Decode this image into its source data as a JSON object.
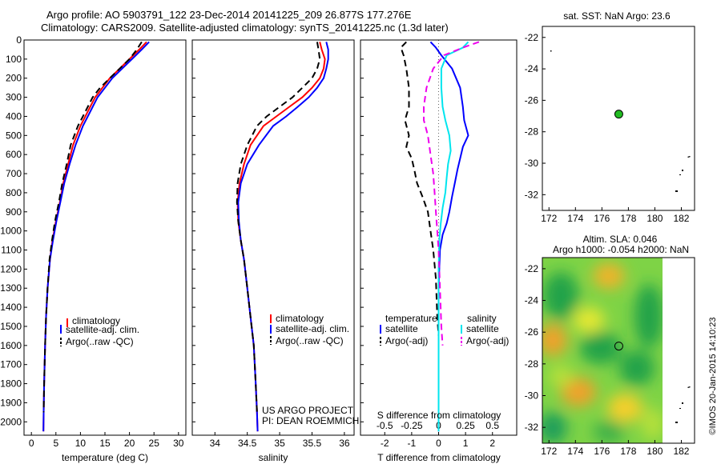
{
  "header": {
    "title_line1": "Argo profile: AO 5903791_122 23-Dec-2014 20141225_209 26.877S 177.276E",
    "title_line2": "Climatology: CARS2009. Satellite-adjusted climatology: synTS_20141225.nc (1.3d later)"
  },
  "colors": {
    "climatology": "#ff0000",
    "satellite": "#0000ff",
    "argo": "#000000",
    "sat_diff": "#00e5ee",
    "argo_adj": "#ee00ee",
    "marker": "#22bb22"
  },
  "chart_data": [
    {
      "id": "temperature",
      "type": "line",
      "xlabel": "temperature (deg C)",
      "ylabel": "",
      "xlim": [
        -1.5,
        31.5
      ],
      "ylim": [
        2070,
        0
      ],
      "xticks": [
        "0",
        "5",
        "10",
        "15",
        "20",
        "25",
        "30"
      ],
      "xtick_values": [
        0,
        5,
        10,
        15,
        20,
        25,
        30
      ],
      "yticks": [
        "0",
        "100",
        "200",
        "300",
        "400",
        "500",
        "600",
        "700",
        "800",
        "900",
        "1000",
        "1100",
        "1200",
        "1300",
        "1400",
        "1500",
        "1600",
        "1700",
        "1800",
        "1900",
        "2000"
      ],
      "ytick_values": [
        0,
        100,
        200,
        300,
        400,
        500,
        600,
        700,
        800,
        900,
        1000,
        1100,
        1200,
        1300,
        1400,
        1500,
        1600,
        1700,
        1800,
        1900,
        2000
      ],
      "legend": [
        "climatology",
        "satellite-adj. clim.",
        "Argo(..raw -QC)"
      ],
      "series": [
        {
          "name": "climatology",
          "color": "#ff0000",
          "dash": "",
          "x": [
            23.5,
            22,
            20,
            18,
            16,
            14.5,
            13,
            12,
            11,
            10,
            8.5,
            7.5,
            6.5,
            5.8,
            5,
            4.3,
            3.8,
            3.3,
            3,
            2.8,
            2.6,
            2.5,
            2.45
          ],
          "y": [
            10,
            50,
            100,
            150,
            200,
            250,
            300,
            350,
            400,
            450,
            550,
            650,
            750,
            850,
            950,
            1050,
            1150,
            1300,
            1450,
            1600,
            1800,
            1950,
            2050
          ]
        },
        {
          "name": "satellite-adj. clim.",
          "color": "#0000ff",
          "dash": "",
          "x": [
            24,
            22.5,
            20.5,
            18.5,
            16.5,
            15,
            13.5,
            12.5,
            11.5,
            10.5,
            9,
            7.8,
            6.7,
            5.9,
            5.1,
            4.4,
            3.8,
            3.3,
            3,
            2.8,
            2.6,
            2.5,
            2.45
          ],
          "y": [
            10,
            50,
            100,
            150,
            200,
            250,
            300,
            350,
            400,
            450,
            550,
            650,
            750,
            850,
            950,
            1050,
            1150,
            1300,
            1450,
            1600,
            1800,
            1950,
            2050
          ]
        },
        {
          "name": "Argo(..raw -QC)",
          "color": "#000000",
          "dash": "8,5",
          "x": [
            22.5,
            21.5,
            20,
            18,
            16,
            14,
            12.5,
            11.5,
            10.5,
            9.5,
            8,
            7.2,
            6.3,
            5.6,
            4.8,
            4.2,
            3.7,
            3.3,
            3,
            2.8,
            2.6,
            2.5
          ],
          "y": [
            10,
            50,
            100,
            150,
            200,
            250,
            300,
            350,
            400,
            450,
            550,
            650,
            750,
            850,
            950,
            1050,
            1150,
            1300,
            1450,
            1600,
            1800,
            1950
          ]
        }
      ]
    },
    {
      "id": "salinity",
      "type": "line",
      "xlabel": "salinity",
      "ylabel": "",
      "xlim": [
        33.65,
        36.15
      ],
      "ylim": [
        2070,
        0
      ],
      "xticks": [
        "34",
        "34.5",
        "35",
        "35.5",
        "36"
      ],
      "xtick_values": [
        34,
        34.5,
        35,
        35.5,
        36
      ],
      "legend": [
        "climatology",
        "satellite-adj. clim.",
        "Argo(..raw -QC)"
      ],
      "credit_line1": "US ARGO PROJECT",
      "credit_line2": "PI: DEAN ROEMMICH",
      "series": [
        {
          "name": "climatology",
          "color": "#ff0000",
          "dash": "",
          "x": [
            35.62,
            35.65,
            35.7,
            35.68,
            35.62,
            35.5,
            35.35,
            35.15,
            34.95,
            34.75,
            34.55,
            34.45,
            34.38,
            34.35,
            34.36,
            34.4,
            34.45,
            34.5,
            34.55,
            34.6,
            34.63,
            34.65,
            34.66
          ],
          "y": [
            10,
            50,
            100,
            150,
            200,
            250,
            300,
            350,
            400,
            450,
            550,
            650,
            750,
            850,
            950,
            1050,
            1150,
            1300,
            1450,
            1600,
            1800,
            1950,
            2050
          ]
        },
        {
          "name": "satellite-adj. clim.",
          "color": "#0000ff",
          "dash": "",
          "x": [
            35.72,
            35.75,
            35.75,
            35.72,
            35.68,
            35.58,
            35.45,
            35.28,
            35.1,
            34.9,
            34.68,
            34.5,
            34.4,
            34.36,
            34.37,
            34.4,
            34.45,
            34.5,
            34.55,
            34.6,
            34.63,
            34.65,
            34.66
          ],
          "y": [
            10,
            50,
            100,
            150,
            200,
            250,
            300,
            350,
            400,
            450,
            550,
            650,
            750,
            850,
            950,
            1050,
            1150,
            1300,
            1450,
            1600,
            1800,
            1950,
            2050
          ]
        },
        {
          "name": "Argo(..raw -QC)",
          "color": "#000000",
          "dash": "8,5",
          "x": [
            35.58,
            35.6,
            35.62,
            35.58,
            35.5,
            35.35,
            35.2,
            35,
            34.8,
            34.65,
            34.5,
            34.4,
            34.35,
            34.34,
            34.36,
            34.4,
            34.45,
            34.5,
            34.55,
            34.6,
            34.63,
            34.65
          ],
          "y": [
            10,
            50,
            100,
            150,
            200,
            250,
            300,
            350,
            400,
            450,
            550,
            650,
            750,
            850,
            950,
            1050,
            1150,
            1300,
            1450,
            1600,
            1800,
            1950
          ]
        }
      ]
    },
    {
      "id": "difference",
      "type": "line",
      "xlabel": "T difference from climatology",
      "xlabel_top": "S difference from climatology",
      "xlim": [
        -2.9,
        2.9
      ],
      "ylim": [
        2070,
        0
      ],
      "xticks": [
        "-2",
        "-1",
        "0",
        "1",
        "2"
      ],
      "xtick_values": [
        -2,
        -1,
        0,
        1,
        2
      ],
      "xticks_top": [
        "-0.5",
        "-0.25",
        "0",
        "0.25",
        "0.5"
      ],
      "legend_temperature_title": "temperature",
      "legend_salinity_title": "salinity",
      "legend": [
        "satellite",
        "Argo(-adj)",
        "satellite",
        "Argo(-adj)"
      ],
      "series": [
        {
          "name": "satellite",
          "color": "#0000ff",
          "dash": "",
          "x": [
            -0.3,
            -0.1,
            0.1,
            0.5,
            0.8,
            0.9,
            0.95,
            1.1,
            0.9,
            0.8,
            0.7,
            0.6,
            0.5,
            0.4,
            0.3,
            0.15,
            0.05,
            0,
            0,
            0,
            0
          ],
          "y": [
            10,
            40,
            80,
            150,
            250,
            350,
            420,
            500,
            560,
            620,
            680,
            750,
            820,
            900,
            960,
            1020,
            1100,
            1300,
            1500,
            1800,
            2050
          ]
        },
        {
          "name": "Argo(-adj)",
          "color": "#000000",
          "dash": "8,5",
          "x": [
            -1.2,
            -1.4,
            -1.3,
            -1.2,
            -1.1,
            -1.1,
            -1.25,
            -1.1,
            -1.2,
            -1,
            -0.9,
            -0.8,
            -0.6,
            -0.4,
            -0.3,
            -0.2,
            -0.1,
            -0.05,
            0
          ],
          "y": [
            10,
            40,
            80,
            150,
            250,
            350,
            420,
            500,
            560,
            620,
            680,
            750,
            820,
            900,
            1000,
            1100,
            1250,
            1450,
            1550
          ]
        },
        {
          "name": "satellite",
          "color": "#00e5ee",
          "dash": "",
          "x": [
            1.1,
            0.9,
            0.3,
            0.1,
            0.1,
            0.15,
            0.25,
            0.4,
            0.45,
            0.35,
            0.3,
            0.25,
            0.15,
            0.08,
            0.03,
            0,
            0,
            0
          ],
          "y": [
            10,
            40,
            80,
            150,
            250,
            350,
            420,
            500,
            580,
            650,
            720,
            800,
            880,
            960,
            1040,
            1200,
            1600,
            2050
          ]
        },
        {
          "name": "Argo(-adj)",
          "color": "#ee00ee",
          "dash": "8,5",
          "x": [
            1.5,
            0.9,
            0.2,
            -0.2,
            -0.45,
            -0.55,
            -0.55,
            -0.4,
            -0.3,
            -0.2,
            -0.15,
            -0.1,
            -0.05,
            0,
            0.1,
            0.15
          ],
          "y": [
            10,
            40,
            80,
            150,
            250,
            350,
            420,
            500,
            600,
            700,
            800,
            900,
            1000,
            1100,
            1500,
            1600
          ]
        }
      ]
    },
    {
      "id": "sst_map",
      "type": "scatter",
      "title": "sat. SST: NaN Argo: 23.6",
      "xlim": [
        171.5,
        183
      ],
      "ylim": [
        -33,
        -21.3
      ],
      "xticks": [
        "172",
        "174",
        "176",
        "178",
        "180",
        "182"
      ],
      "xtick_values": [
        172,
        174,
        176,
        178,
        180,
        182
      ],
      "yticks": [
        "-22",
        "-24",
        "-26",
        "-28",
        "-30",
        "-32"
      ],
      "ytick_values": [
        -22,
        -24,
        -26,
        -28,
        -30,
        -32
      ],
      "points": [
        {
          "x": 177.276,
          "y": -26.877
        }
      ]
    },
    {
      "id": "sla_map",
      "type": "heatmap",
      "title_line1": "Altim. SLA: 0.046",
      "title_line2": "Argo h1000: -0.054 h2000: NaN",
      "xlim": [
        171.5,
        183
      ],
      "ylim": [
        -33,
        -21.3
      ],
      "xticks": [
        "172",
        "174",
        "176",
        "178",
        "180",
        "182"
      ],
      "xtick_values": [
        172,
        174,
        176,
        178,
        180,
        182
      ],
      "yticks": [
        "-22",
        "-24",
        "-26",
        "-28",
        "-30",
        "-32"
      ],
      "ytick_values": [
        -22,
        -24,
        -26,
        -28,
        -30,
        -32
      ],
      "points": [
        {
          "x": 177.276,
          "y": -26.877
        }
      ]
    }
  ],
  "footer": {
    "credit": "©IMOS 20-Jan-2015 14:10:23"
  }
}
